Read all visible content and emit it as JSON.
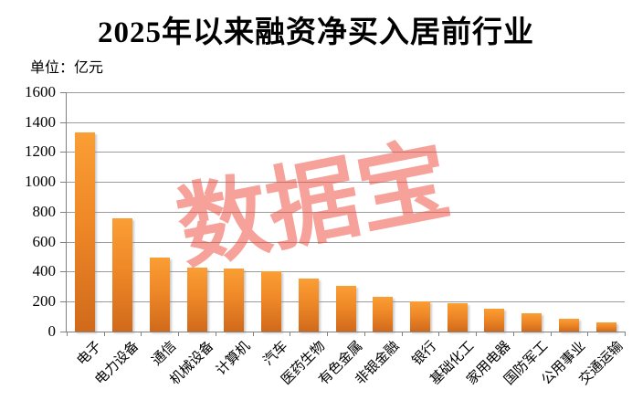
{
  "page": {
    "title": "2025年以来融资净买入居前行业",
    "unit_label": "单位：亿元",
    "watermark": "数据宝"
  },
  "chart_data": {
    "type": "bar",
    "title": "2025年以来融资净买入居前行业",
    "unit": "亿元",
    "categories": [
      "电子",
      "电力设备",
      "通信",
      "机械设备",
      "计算机",
      "汽车",
      "医药生物",
      "有色金属",
      "非银金融",
      "银行",
      "基础化工",
      "家用电器",
      "国防军工",
      "公用事业",
      "交通运输"
    ],
    "values": [
      1334,
      757,
      495,
      430,
      424,
      400,
      352,
      306,
      232,
      200,
      188,
      151,
      123,
      84,
      62
    ],
    "ylim": [
      0,
      1600
    ],
    "yticks": [
      0,
      200,
      400,
      600,
      800,
      1000,
      1200,
      1400,
      1600
    ],
    "xlabel": "",
    "ylabel": "单位：亿元",
    "grid": true,
    "legend": false,
    "watermark_text": "数据宝",
    "colors": {
      "bar_top": "#FA9E35",
      "bar_bottom": "#D06A1B",
      "gridline": "#9C9C9C",
      "axis": "#808080",
      "watermark": "#EE4637",
      "text": "#000000"
    }
  }
}
